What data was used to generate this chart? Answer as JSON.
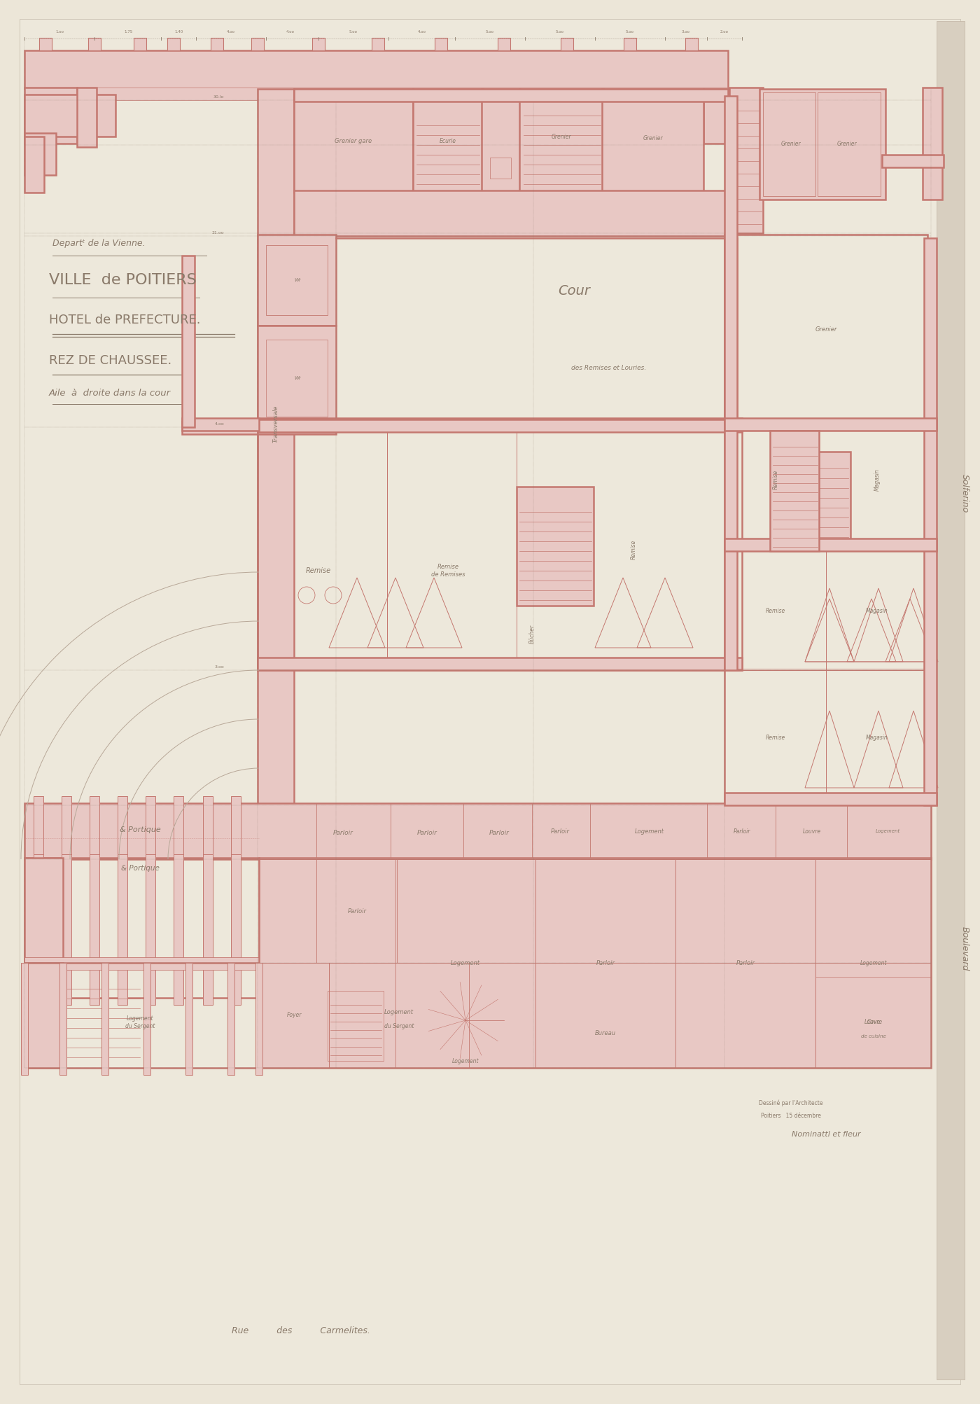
{
  "bg_color": "#ece6d8",
  "paper_color": "#ede8db",
  "line_color": "#c47870",
  "wall_fill": "#e8c8c4",
  "dim_color": "#8a7a6a",
  "arc_color": "#b8a898",
  "thin_line_color": "#b09080",
  "title_text1": "Departᵗ de la Vienne.",
  "title_text2": "VILLE  de POITIERS",
  "title_text3": "HOTEL de PREFECTURE.",
  "title_text4": "REZ DE CHAUSSEE.",
  "title_text5": "Aile  à  droite dans la cour",
  "street_label": "Rue          des          Carmelites.",
  "right_label1": "Solferino",
  "right_label2": "Boulevard",
  "sig1": "Dessiné par l'Architecte",
  "sig2": "Poitiers   15 décembre",
  "sig3": "Nominattl et fleur"
}
